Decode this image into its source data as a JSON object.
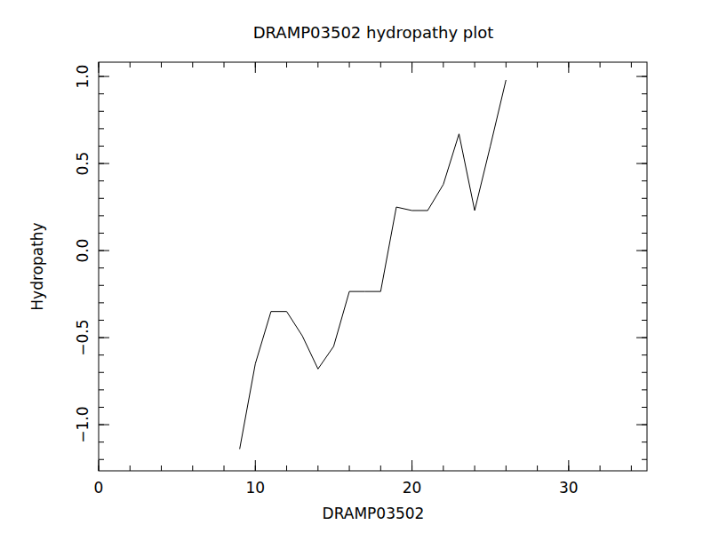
{
  "chart_data": {
    "type": "line",
    "title": "DRAMP03502 hydropathy plot",
    "x_label": "DRAMP03502",
    "y_label": "Hydropathy",
    "x": [
      9,
      10,
      11,
      12,
      13,
      14,
      15,
      16,
      17,
      18,
      19,
      20,
      21,
      22,
      23,
      24,
      25,
      26
    ],
    "values": [
      -1.14,
      -0.65,
      -0.35,
      -0.35,
      -0.49,
      -0.68,
      -0.55,
      -0.235,
      -0.235,
      -0.235,
      0.25,
      0.23,
      0.23,
      0.38,
      0.67,
      0.23,
      0.6,
      0.98
    ],
    "color": "#000000",
    "xlim": [
      0,
      35
    ],
    "ylim": [
      -1.265,
      1.082
    ],
    "xticks": [
      0,
      10,
      20,
      30
    ],
    "yticks": [
      {
        "value": -1.0,
        "label": "−1.0"
      },
      {
        "value": -0.5,
        "label": "−0.5"
      },
      {
        "value": 0.0,
        "label": "0.0"
      },
      {
        "value": 0.5,
        "label": "0.5"
      },
      {
        "value": 1.0,
        "label": "1.0"
      }
    ],
    "grid": false
  }
}
